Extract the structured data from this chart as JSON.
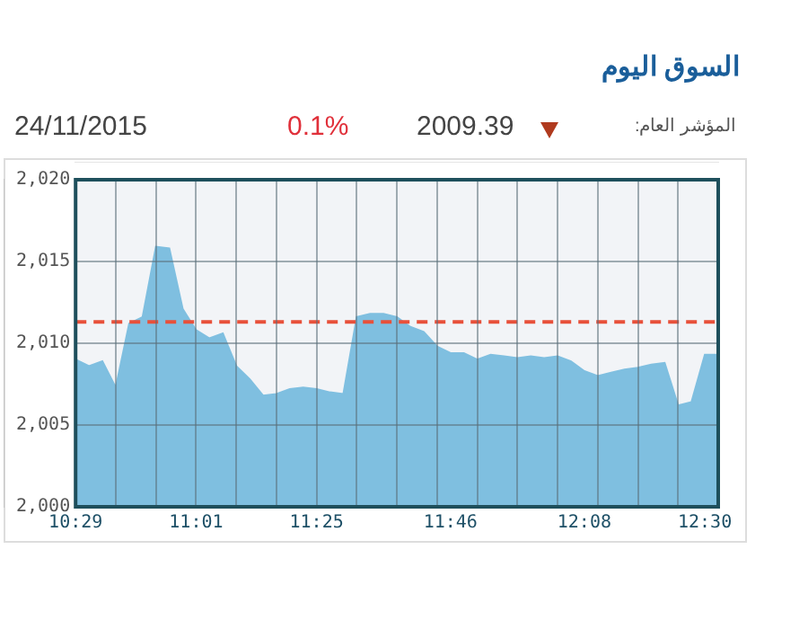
{
  "chart_data": {
    "type": "area",
    "title": "السوق اليوم",
    "annotations": [
      "المؤشر العام:",
      "2009.39",
      "0.1%",
      "24/11/2015"
    ],
    "categories": [
      "10:29",
      null,
      null,
      null,
      null,
      null,
      null,
      null,
      null,
      "11:01",
      null,
      null,
      null,
      null,
      null,
      null,
      null,
      null,
      "11:25",
      null,
      null,
      null,
      null,
      null,
      null,
      null,
      null,
      null,
      "11:46",
      null,
      null,
      null,
      null,
      null,
      null,
      null,
      null,
      null,
      "12:08",
      null,
      null,
      null,
      null,
      null,
      null,
      null,
      null,
      "12:30",
      null
    ],
    "values": [
      2009.0,
      2008.6,
      2008.9,
      2007.3,
      2011.2,
      2011.6,
      2015.9,
      2015.8,
      2012.1,
      2010.8,
      2010.3,
      2010.6,
      2008.6,
      2007.8,
      2006.8,
      2006.9,
      2007.2,
      2007.3,
      2007.2,
      2007.0,
      2006.9,
      2011.6,
      2011.8,
      2011.8,
      2011.6,
      2011.0,
      2010.7,
      2009.8,
      2009.4,
      2009.4,
      2009.0,
      2009.3,
      2009.2,
      2009.1,
      2009.2,
      2009.1,
      2009.2,
      2008.9,
      2008.3,
      2008.0,
      2008.2,
      2008.4,
      2008.5,
      2008.7,
      2008.8,
      2006.2,
      2006.4,
      2009.3,
      2009.3
    ],
    "color": "#7fbfe0",
    "ylim": [
      2000,
      2020
    ],
    "yticks": [
      {
        "value": 2000,
        "label": "2,000"
      },
      {
        "value": 2005,
        "label": "2,005"
      },
      {
        "value": 2010,
        "label": "2,010"
      },
      {
        "value": 2015,
        "label": "2,015"
      },
      {
        "value": 2020,
        "label": "2,020"
      }
    ],
    "ref_lines": [
      {
        "axis": "y",
        "value": 2011.3,
        "color": "#e8503a",
        "line_style": "dashed"
      }
    ],
    "grid": true
  }
}
